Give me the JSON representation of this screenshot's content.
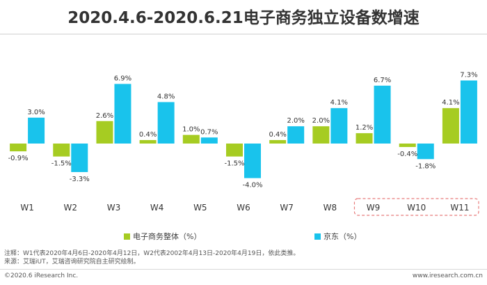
{
  "title": "2020.4.6-2020.6.21电子商务独立设备数增速",
  "colors": {
    "overall": "#a6cc22",
    "jd": "#19c3ec",
    "highlight": "#e87a7a"
  },
  "chart_data": {
    "type": "bar",
    "categories": [
      "W1",
      "W2",
      "W3",
      "W4",
      "W5",
      "W6",
      "W7",
      "W8",
      "W9",
      "W10",
      "W11"
    ],
    "series": [
      {
        "name": "电子商务整体（%）",
        "values": [
          -0.9,
          -1.5,
          2.6,
          0.4,
          1.0,
          -1.5,
          0.4,
          2.0,
          1.2,
          -0.4,
          4.1
        ],
        "labels": [
          "-0.9%",
          "-1.5%",
          "2.6%",
          "0.4%",
          "1.0%",
          "-1.5%",
          "0.4%",
          "2.0%",
          "1.2%",
          "-0.4%",
          "4.1%"
        ]
      },
      {
        "name": "京东（%）",
        "values": [
          3.0,
          -3.3,
          6.9,
          4.8,
          0.7,
          -4.0,
          2.0,
          4.1,
          6.7,
          -1.8,
          7.3
        ],
        "labels": [
          "3.0%",
          "-3.3%",
          "6.9%",
          "4.8%",
          "0.7%",
          "-4.0%",
          "2.0%",
          "4.1%",
          "6.7%",
          "-1.8%",
          "7.3%"
        ]
      }
    ],
    "highlighted_categories": [
      "W9",
      "W10",
      "W11"
    ],
    "legend_position": "bottom",
    "grid": false
  },
  "notes": {
    "line1": "注释：W1代表2020年4月6日-2020年4月12日，W2代表2002年4月13日-2020年4月19日，依此类推。",
    "line2": "来源：艾瑞iUT，艾瑞咨询研究院自主研究绘制。"
  },
  "footer": {
    "copyright": "©2020.6 iResearch Inc.",
    "website": "www.iresearch.com.cn"
  }
}
